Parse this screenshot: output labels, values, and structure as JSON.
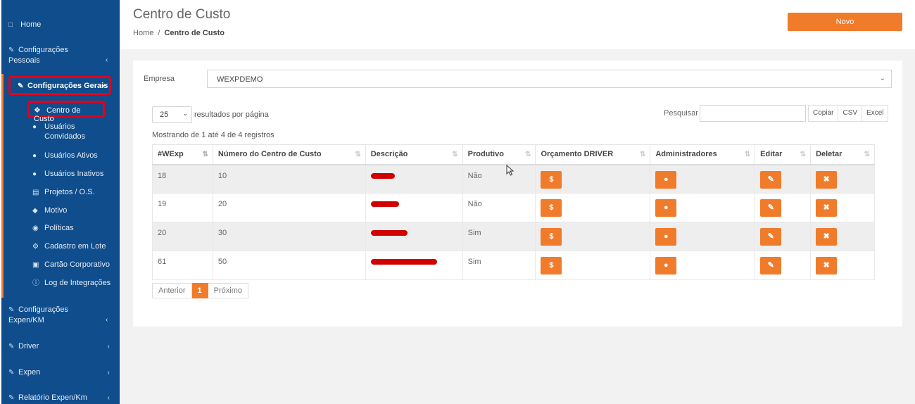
{
  "sidebar": {
    "home": "Home",
    "config_pessoais": "Configurações Pessoais",
    "config_gerais": "Configurações Gerais",
    "sub": {
      "centro_custo": "Centro de Custo",
      "usuarios_convidados": "Usuários Convidados",
      "usuarios_ativos": "Usuários Ativos",
      "usuarios_inativos": "Usuários Inativos",
      "projetos": "Projetos / O.S.",
      "motivo": "Motivo",
      "politicas": "Políticas",
      "cadastro_lote": "Cadastro em Lote",
      "cartao": "Cartão Corporativo",
      "log": "Log de Integrações"
    },
    "config_expen": "Configurações Expen/KM",
    "driver": "Driver",
    "expen": "Expen",
    "relatorio": "Relatório Expen/Km"
  },
  "header": {
    "title": "Centro de Custo",
    "breadcrumb_home": "Home",
    "breadcrumb_sep": "/",
    "breadcrumb_current": "Centro de Custo",
    "new_button": "Novo"
  },
  "filter": {
    "empresa_label": "Empresa",
    "empresa_value": "WEXPDEMO"
  },
  "table_controls": {
    "page_length": "25",
    "page_length_label": "resultados por página",
    "search_label": "Pesquisar",
    "export_copy": "Copiar",
    "export_csv": "CSV",
    "export_excel": "Excel",
    "info": "Mostrando de 1 até 4 de 4 registros"
  },
  "table": {
    "headers": [
      "#WExp",
      "Número do Centro de Custo",
      "Descrição",
      "Produtivo",
      "Orçamento DRIVER",
      "Administradores",
      "Editar",
      "Deletar"
    ],
    "rows": [
      {
        "id": "18",
        "numero": "10",
        "produtivo": "Não"
      },
      {
        "id": "19",
        "numero": "20",
        "produtivo": "Não"
      },
      {
        "id": "20",
        "numero": "30",
        "produtivo": "Sim"
      },
      {
        "id": "61",
        "numero": "50",
        "produtivo": "Sim"
      }
    ]
  },
  "pagination": {
    "prev": "Anterior",
    "current": "1",
    "next": "Próximo"
  },
  "colors": {
    "sidebar_bg": "#0f4d8c",
    "accent": "#f07b2b",
    "highlight_border": "#e3001b"
  }
}
